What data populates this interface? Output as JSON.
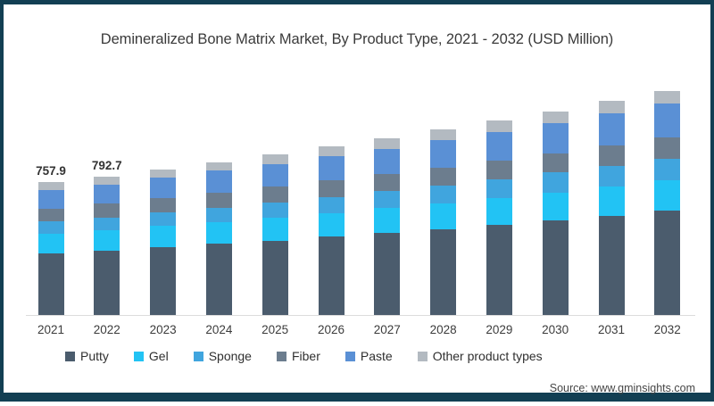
{
  "title": "Demineralized Bone Matrix Market, By Product Type, 2021 - 2032 (USD Million)",
  "source": "Source: www.gminsights.com",
  "frame": {
    "border_color": "#123f53",
    "background": "#ffffff"
  },
  "axis_line_color": "#dcdcdc",
  "chart_data": {
    "type": "bar",
    "stacked": true,
    "title": "Demineralized Bone Matrix Market, By Product Type, 2021 - 2032 (USD Million)",
    "unit": "USD Million",
    "categories": [
      "2021",
      "2022",
      "2023",
      "2024",
      "2025",
      "2026",
      "2027",
      "2028",
      "2029",
      "2030",
      "2031",
      "2032"
    ],
    "series": [
      {
        "name": "Putty",
        "color": "#4b5c6d",
        "values": [
          352.0,
          367.0,
          387.2,
          406.1,
          425.9,
          446.7,
          468.5,
          491.4,
          515.3,
          540.5,
          566.9,
          594.5
        ]
      },
      {
        "name": "Gel",
        "color": "#22c3f4",
        "values": [
          112.0,
          116.6,
          121.4,
          126.4,
          131.6,
          137.0,
          142.6,
          148.5,
          154.6,
          161.0,
          167.6,
          174.5
        ]
      },
      {
        "name": "Sponge",
        "color": "#40a5de",
        "values": [
          70.0,
          73.8,
          77.9,
          82.2,
          86.7,
          91.5,
          96.5,
          101.8,
          107.4,
          113.3,
          119.5,
          126.1
        ]
      },
      {
        "name": "Fiber",
        "color": "#6c7d8e",
        "values": [
          75.5,
          78.7,
          82.0,
          85.4,
          89.0,
          92.8,
          96.7,
          100.7,
          105.0,
          109.4,
          114.0,
          118.8
        ]
      },
      {
        "name": "Paste",
        "color": "#5a90d5",
        "values": [
          104.5,
          110.6,
          117.1,
          124.0,
          131.3,
          139.0,
          147.1,
          155.7,
          164.9,
          174.5,
          184.8,
          195.6
        ]
      },
      {
        "name": "Other product types",
        "color": "#b3bac1",
        "values": [
          43.9,
          46.0,
          48.2,
          50.5,
          52.9,
          55.4,
          58.1,
          60.9,
          63.8,
          66.8,
          70.0,
          73.4
        ]
      }
    ],
    "visible_value_labels": {
      "2021": "757.9",
      "2022": "792.7"
    },
    "ylim": [
      0,
      1300
    ],
    "grid": false,
    "legend_position": "bottom"
  }
}
